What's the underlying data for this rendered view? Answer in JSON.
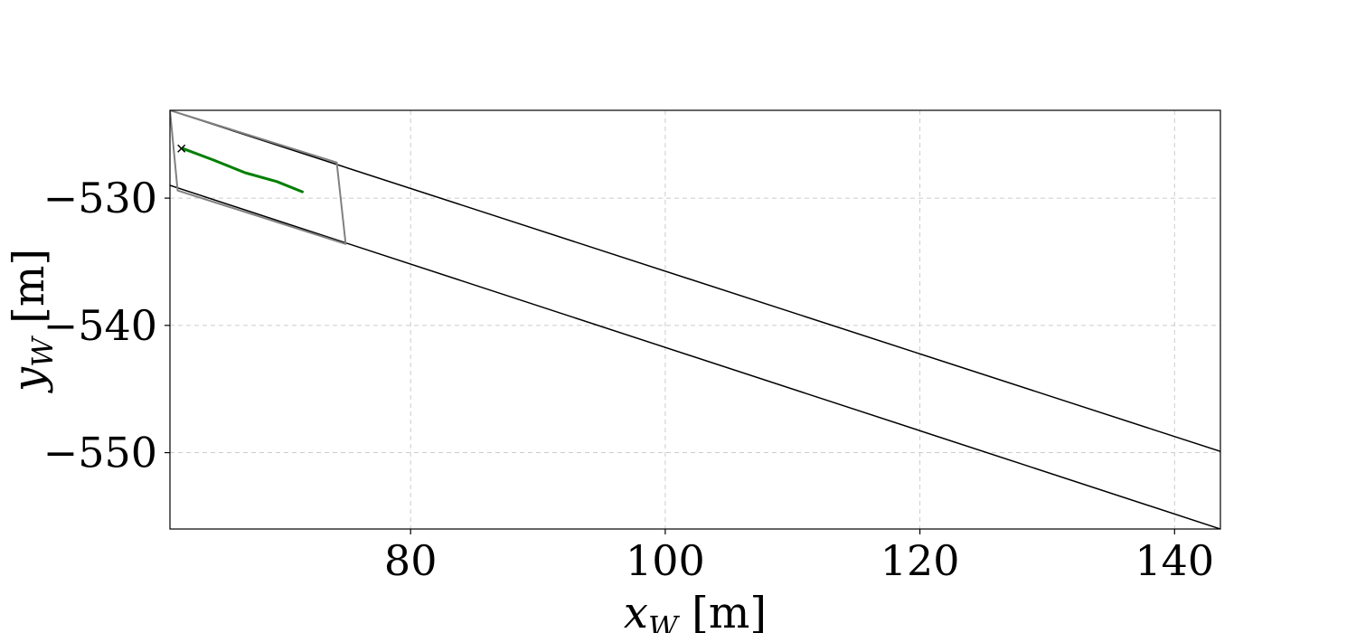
{
  "chart_data": {
    "type": "line",
    "title": "",
    "xlabel": "x_W [m]",
    "ylabel": "y_W [m]",
    "xlim": [
      61.1,
      143.6
    ],
    "ylim": [
      -556.0,
      -523.1
    ],
    "grid": true,
    "legend": "none",
    "x_ticks": [
      80,
      100,
      120,
      140
    ],
    "x_tick_labels": [
      "80",
      "100",
      "120",
      "140"
    ],
    "y_ticks": [
      -530,
      -540,
      -550
    ],
    "y_tick_labels": [
      "−530",
      "−540",
      "−550"
    ],
    "series": [
      {
        "role": "road-boundary-upper",
        "color": "#000000",
        "x": [
          61.1,
          143.6
        ],
        "y": [
          -523.1,
          -549.9
        ]
      },
      {
        "role": "road-boundary-lower",
        "color": "#000000",
        "x": [
          61.1,
          143.6
        ],
        "y": [
          -529.0,
          -556.0
        ]
      },
      {
        "role": "region-outline",
        "color": "#808080",
        "x": [
          61.1,
          74.2,
          74.9,
          61.7,
          61.1
        ],
        "y": [
          -523.1,
          -527.2,
          -533.6,
          -529.4,
          -523.1
        ]
      },
      {
        "role": "trajectory",
        "color": "#007f00",
        "x": [
          62.1,
          64.5,
          67.0,
          69.5,
          71.5
        ],
        "y": [
          -526.1,
          -527.0,
          -528.0,
          -528.7,
          -529.5
        ]
      }
    ],
    "markers": [
      {
        "symbol": "x",
        "color": "#000000",
        "x": 62.0,
        "y": -526.1
      }
    ],
    "colors": {
      "grid": "#cccccc",
      "axes": "#000000"
    }
  }
}
